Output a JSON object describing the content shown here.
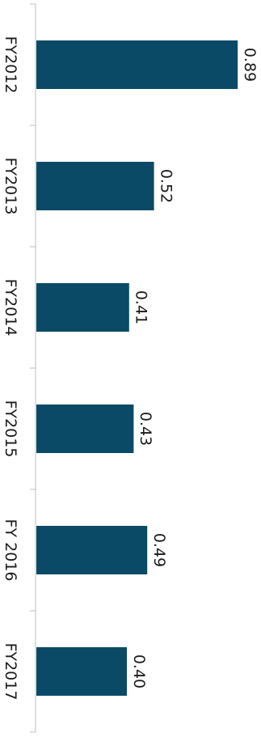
{
  "chart_data": {
    "type": "bar",
    "orientation": "horizontal",
    "categories": [
      "FY2012",
      "FY2013",
      "FY2014",
      "FY2015",
      "FY 2016",
      "FY2017"
    ],
    "values": [
      0.89,
      0.52,
      0.41,
      0.43,
      0.49,
      0.4
    ],
    "value_labels": [
      "0.89",
      "0.52",
      "0.41",
      "0.43",
      "0.49",
      "0.40"
    ],
    "title": "",
    "xlabel": "",
    "ylabel": "",
    "xlim": [
      0,
      1.0
    ],
    "grid": false,
    "legend": "none",
    "bar_color": "#0b4a66",
    "text_color": "#1a1a1a",
    "axis_color": "#bdbdbd"
  }
}
